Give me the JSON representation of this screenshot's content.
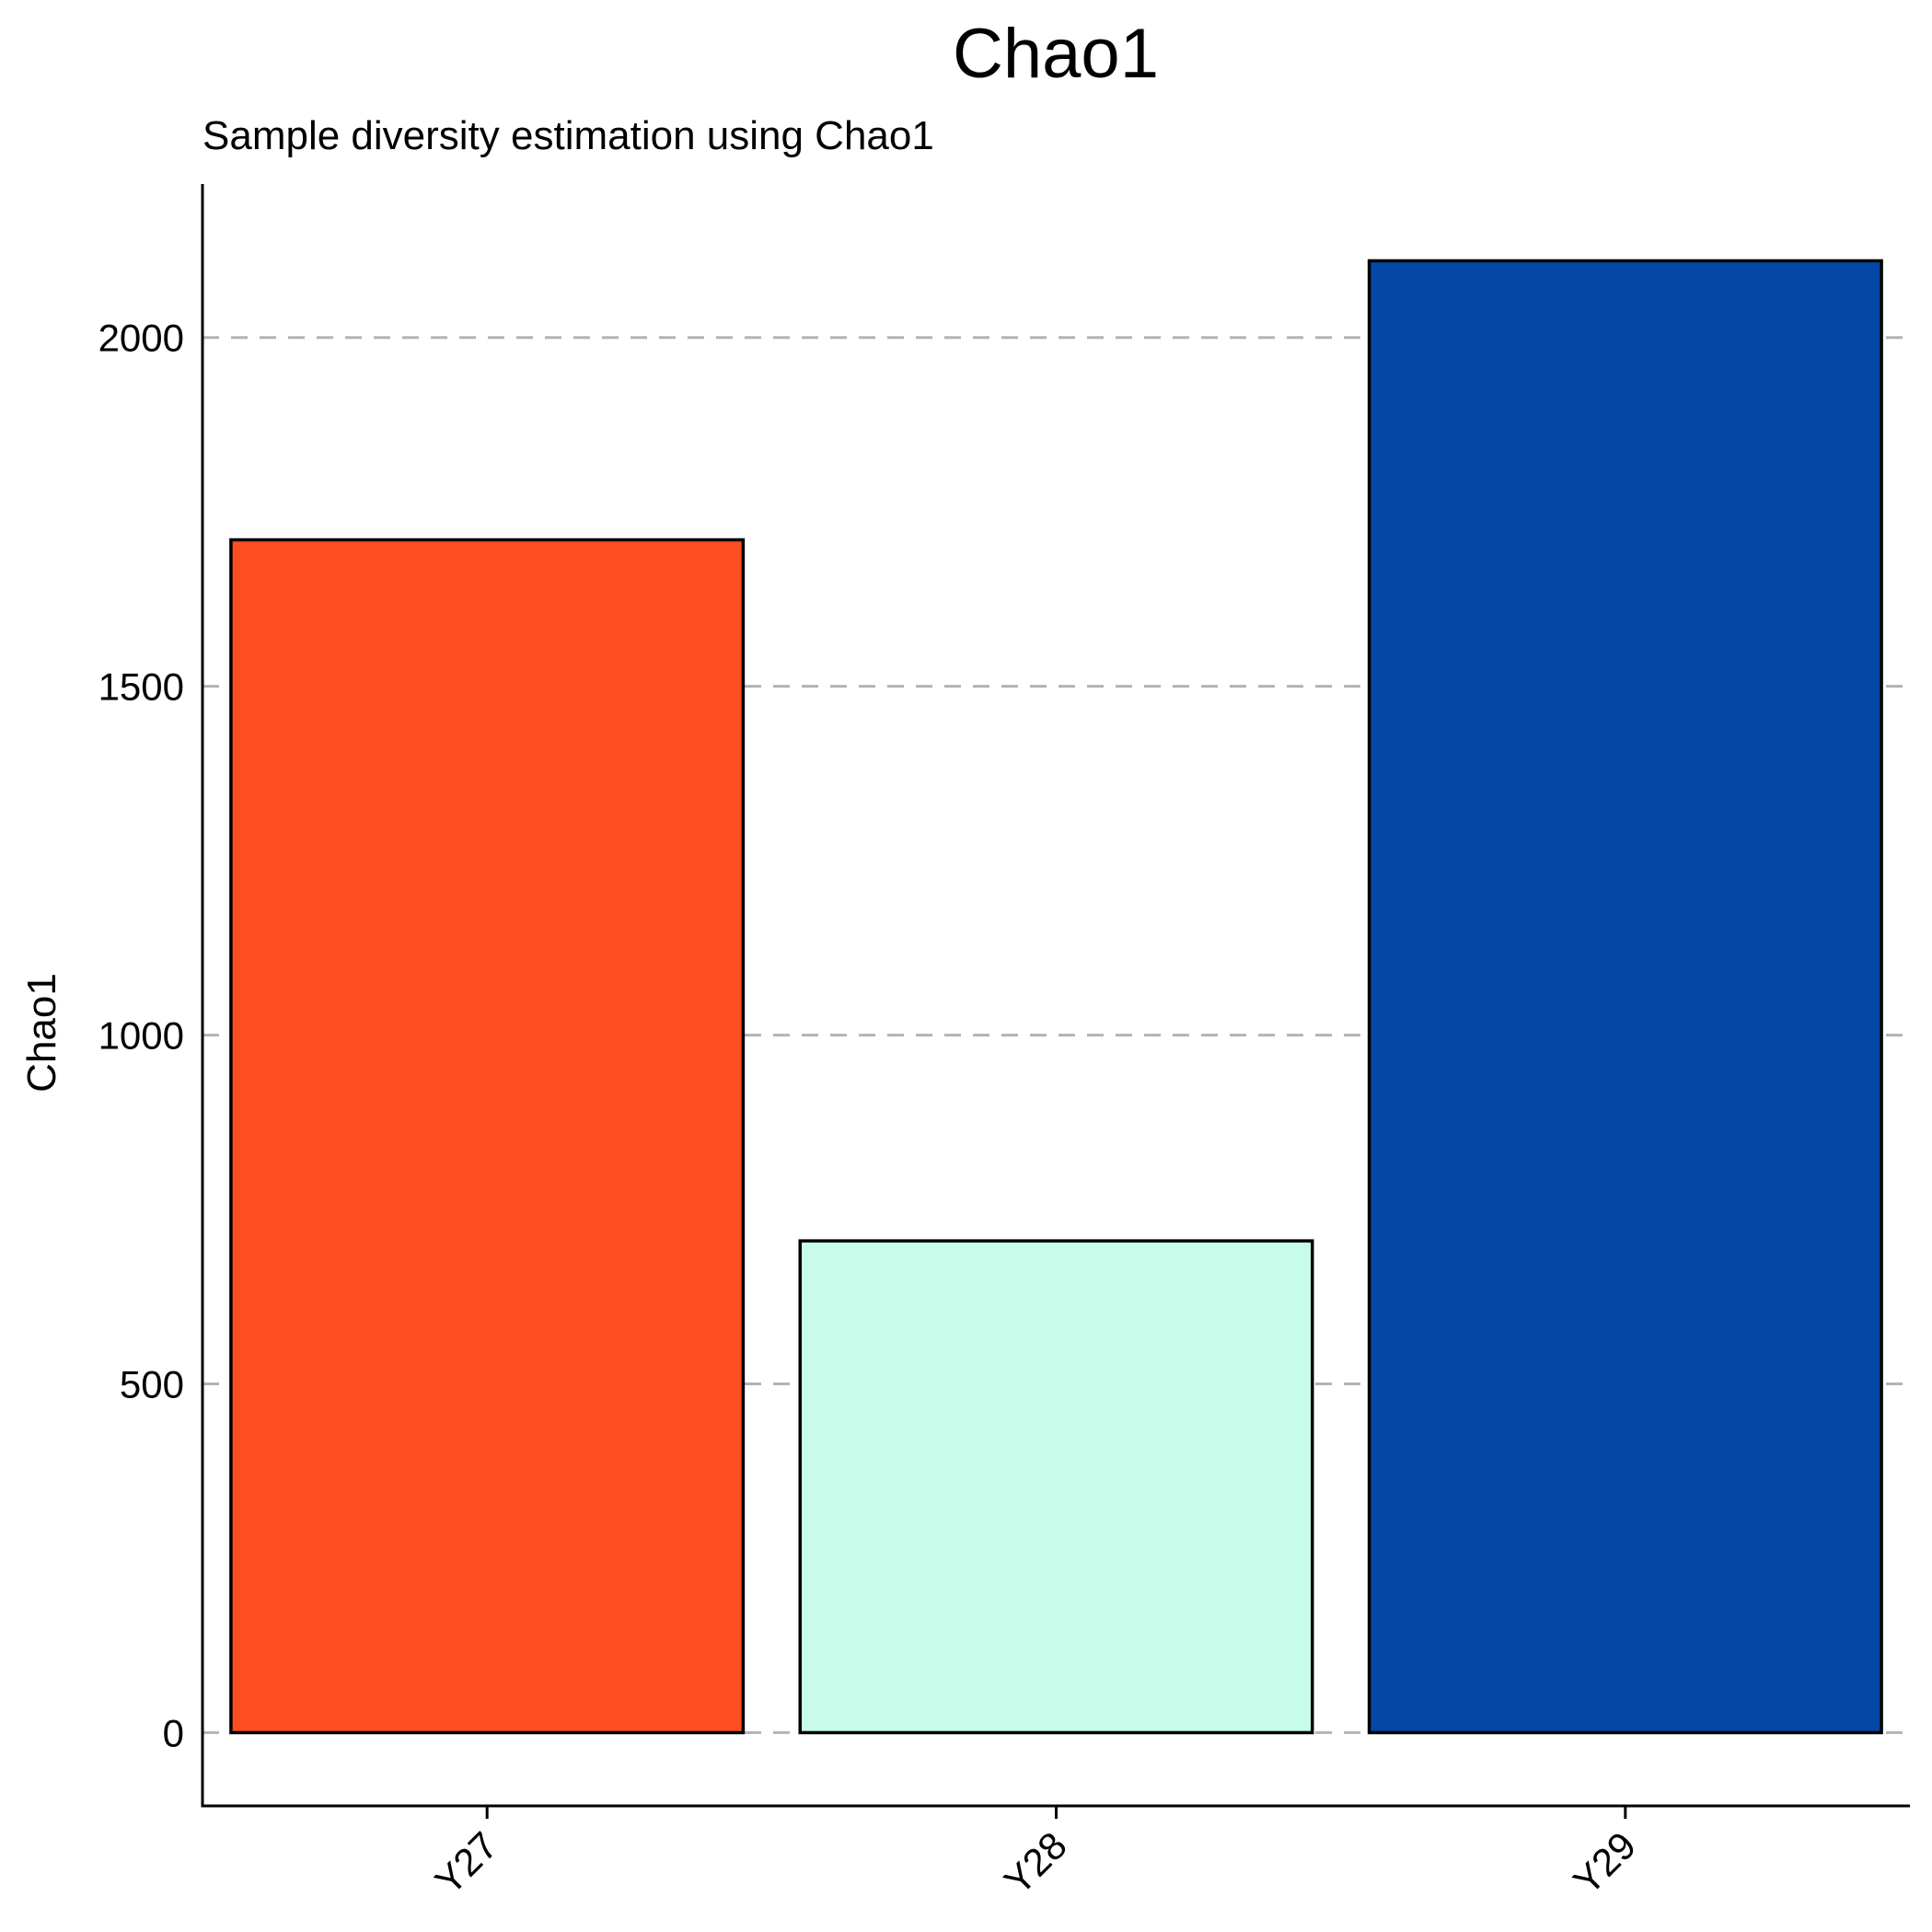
{
  "chart_data": {
    "type": "bar",
    "title": "Chao1",
    "subtitle": "Sample diversity estimation using Chao1",
    "xlabel": "",
    "ylabel": "Chao1",
    "categories": [
      "Y27",
      "Y28",
      "Y29"
    ],
    "values": [
      1710,
      705,
      2110
    ],
    "colors": [
      "#ff4e22",
      "#c7fcea",
      "#0348a6"
    ],
    "ylim": [
      -105,
      2220
    ],
    "yticks": [
      0,
      500,
      1000,
      1500,
      2000
    ],
    "ytick_labels": [
      "0",
      "500",
      "1000",
      "1500",
      "2000"
    ],
    "grid": "horizontal-dashed",
    "legend": "none"
  }
}
